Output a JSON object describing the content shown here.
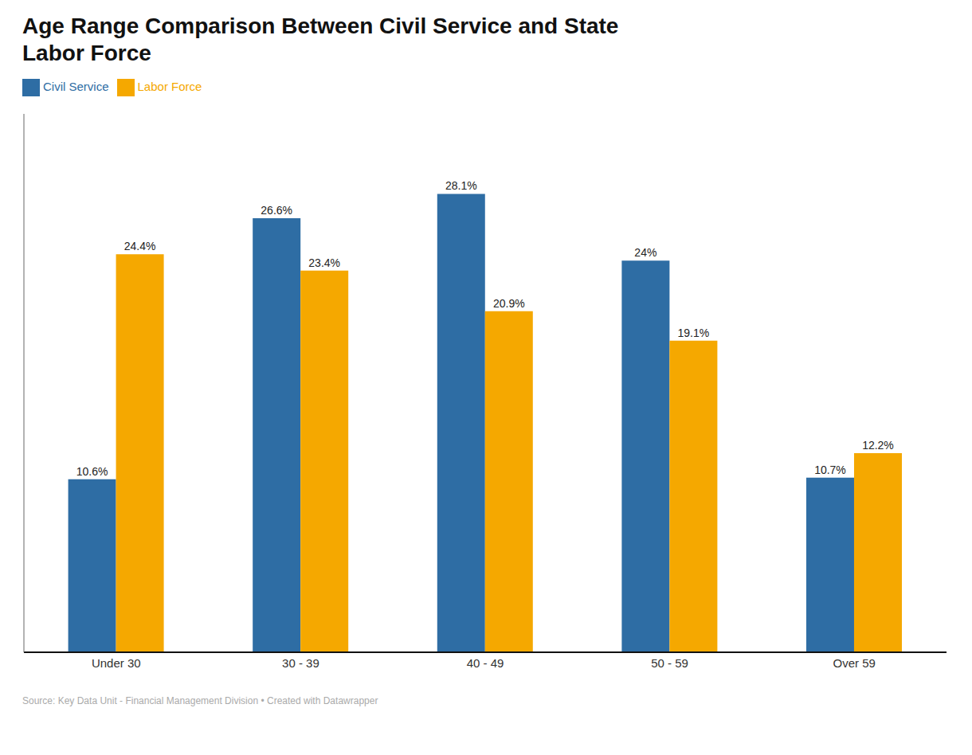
{
  "chart_data": {
    "type": "bar",
    "title": "Age Range Comparison Between Civil Service and State\nLabor Force",
    "categories": [
      "Under 30",
      "30 - 39",
      "40 - 49",
      "50 - 59",
      "Over 59"
    ],
    "series": [
      {
        "name": "Civil Service",
        "color": "#2E6DA4",
        "values": [
          10.6,
          26.6,
          28.1,
          24.0,
          10.7
        ],
        "value_labels": [
          "10.6%",
          "26.6%",
          "28.1%",
          "24%",
          "10.7%"
        ]
      },
      {
        "name": "Labor Force",
        "color": "#F5A800",
        "values": [
          24.4,
          23.4,
          20.9,
          19.1,
          12.2
        ],
        "value_labels": [
          "24.4%",
          "23.4%",
          "20.9%",
          "19.1%",
          "12.2%"
        ]
      }
    ],
    "ylim": [
      0,
      33
    ],
    "data_labels": true,
    "tick_labels": "x",
    "grid": false,
    "legend": "top-left",
    "annotations": [
      "Source: Key Data Unit - Financial Management Division • Created with Datawrapper"
    ]
  }
}
